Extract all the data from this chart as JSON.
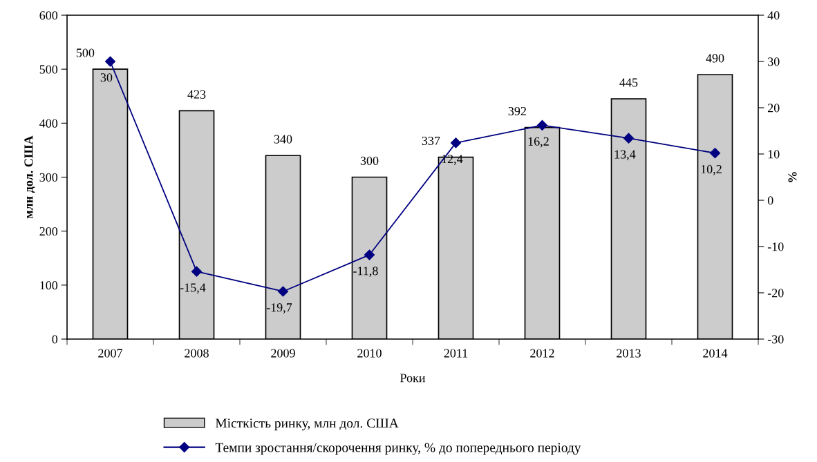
{
  "chart_data": {
    "type": "bar",
    "xlabel": "Роки",
    "ylabel": "млн дол. США",
    "y2label": "%",
    "categories": [
      "2007",
      "2008",
      "2009",
      "2010",
      "2011",
      "2012",
      "2013",
      "2014"
    ],
    "series": [
      {
        "name": "Місткість ринку, млн дол. США",
        "color": "#cccccc",
        "values": [
          500,
          423,
          340,
          300,
          337,
          392,
          445,
          490
        ],
        "value_labels": [
          "500",
          "423",
          "340",
          "300",
          "337",
          "392",
          "445",
          "490"
        ]
      },
      {
        "name": "Темпи зростання/скорочення ринку, % до попереднього періоду",
        "type": "line",
        "axis": "y2",
        "color": "#000080",
        "marker": "diamond",
        "values": [
          30,
          -15.4,
          -19.7,
          -11.8,
          12.4,
          16.2,
          13.4,
          10.2
        ],
        "value_labels": [
          "30",
          "-15,4",
          "-19,7",
          "-11,8",
          "12,4",
          "16,2",
          "13,4",
          "10,2"
        ]
      }
    ],
    "ylim": [
      0,
      600
    ],
    "yticks": [
      0,
      100,
      200,
      300,
      400,
      500,
      600
    ],
    "y2lim": [
      -30,
      40
    ],
    "y2ticks": [
      -30,
      -20,
      -10,
      0,
      10,
      20,
      30,
      40
    ],
    "grid": false,
    "legend": "bottom"
  }
}
